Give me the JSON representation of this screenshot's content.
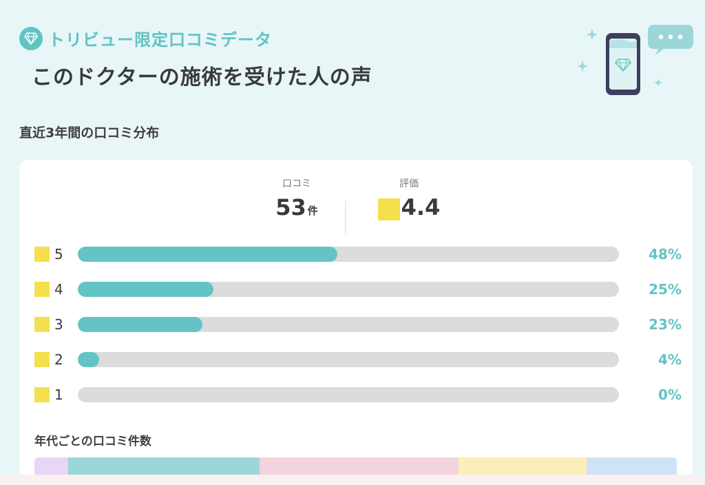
{
  "header": {
    "brand_label": "トリビュー限定口コミデータ",
    "title": "このドクターの施術を受けた人の声"
  },
  "section": {
    "title": "直近3年間の口コミ分布"
  },
  "summary": {
    "reviews_label": "口コミ",
    "reviews_count": "53",
    "reviews_unit": "件",
    "rating_label": "評価",
    "rating_value": "4.4"
  },
  "distribution": [
    {
      "star": "5",
      "percent_label": "48%",
      "percent": 48
    },
    {
      "star": "4",
      "percent_label": "25%",
      "percent": 25
    },
    {
      "star": "3",
      "percent_label": "23%",
      "percent": 23
    },
    {
      "star": "2",
      "percent_label": "4%",
      "percent": 4
    },
    {
      "star": "1",
      "percent_label": "0%",
      "percent": 0
    }
  ],
  "age_section": {
    "title": "年代ごとの口コミ件数",
    "segments": [
      {
        "color": "#e7d6f4",
        "share": 5.2
      },
      {
        "color": "#9bd7d8",
        "share": 29.8
      },
      {
        "color": "#f3d3de",
        "share": 31
      },
      {
        "color": "#faefb8",
        "share": 20
      },
      {
        "color": "#cfe3f6",
        "share": 14
      }
    ]
  },
  "colors": {
    "accent": "#64c4c5",
    "star": "#f5df4d",
    "track": "#dcdcdc",
    "background": "#e8f6f7"
  },
  "icons": {
    "brand": "diamond-icon",
    "illustration": "smartphone-diamond-icon",
    "bubble": "speech-bubble-icon",
    "star": "star-icon"
  }
}
